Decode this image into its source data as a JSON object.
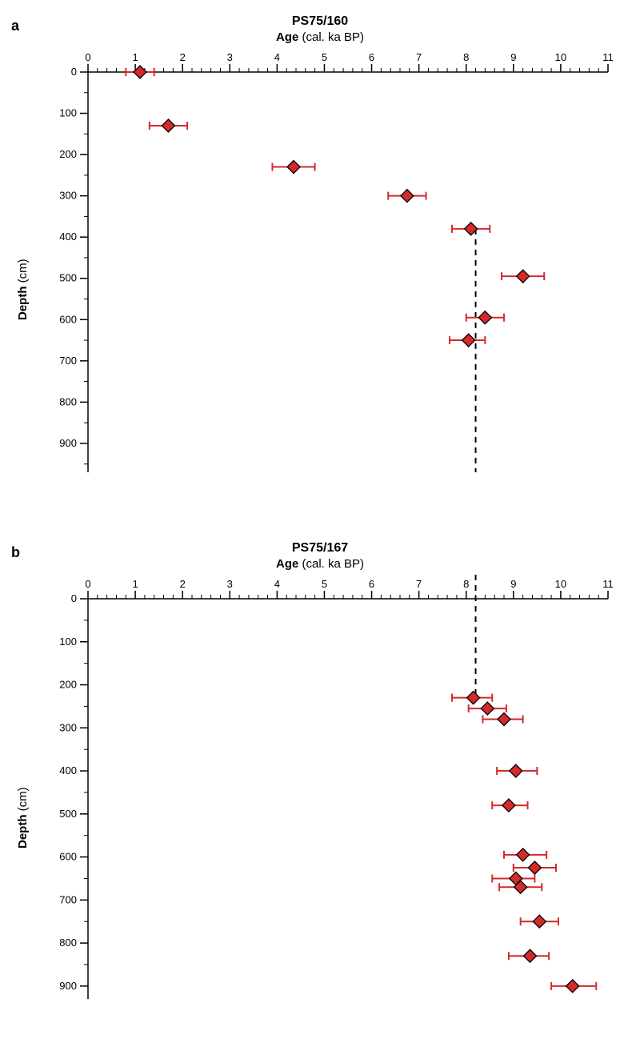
{
  "figure": {
    "background_color": "#ffffff",
    "axis_color": "#000000",
    "marker_fill": "#d42a2a",
    "marker_stroke": "#000000",
    "errorbar_color": "#d42a2a",
    "dashed_line_color": "#000000",
    "panel_label_fontsize": 18,
    "title_fontsize": 16,
    "subtitle_fontsize": 15,
    "tick_label_fontsize": 13,
    "axis_label_fontsize": 15,
    "marker_size": 8,
    "errorbar_cap": 5,
    "line_width": 1.5,
    "dashed_line_x": 8.2
  },
  "panel_a": {
    "label": "a",
    "title": "PS75/160",
    "x_axis_title_bold": "Age",
    "x_axis_title_rest": " (cal. ka BP)",
    "y_axis_title_bold": "Depth",
    "y_axis_title_rest": " (cm)",
    "xlim": [
      0,
      11
    ],
    "ylim": [
      0,
      970
    ],
    "x_major_ticks": [
      0,
      1,
      2,
      3,
      4,
      5,
      6,
      7,
      8,
      9,
      10,
      11
    ],
    "x_minor_per_major": 5,
    "y_major_ticks": [
      0,
      100,
      200,
      300,
      400,
      500,
      600,
      700,
      800,
      900
    ],
    "y_minor_per_major": 2,
    "dashed_line_y_range": [
      380,
      970
    ],
    "points": [
      {
        "depth": 0,
        "age": 1.1,
        "err_lo": 0.3,
        "err_hi": 0.3
      },
      {
        "depth": 130,
        "age": 1.7,
        "err_lo": 0.4,
        "err_hi": 0.4
      },
      {
        "depth": 230,
        "age": 4.35,
        "err_lo": 0.45,
        "err_hi": 0.45
      },
      {
        "depth": 300,
        "age": 6.75,
        "err_lo": 0.4,
        "err_hi": 0.4
      },
      {
        "depth": 380,
        "age": 8.1,
        "err_lo": 0.4,
        "err_hi": 0.4
      },
      {
        "depth": 495,
        "age": 9.2,
        "err_lo": 0.45,
        "err_hi": 0.45
      },
      {
        "depth": 595,
        "age": 8.4,
        "err_lo": 0.4,
        "err_hi": 0.4
      },
      {
        "depth": 650,
        "age": 8.05,
        "err_lo": 0.4,
        "err_hi": 0.35
      }
    ]
  },
  "panel_b": {
    "label": "b",
    "title": "PS75/167",
    "x_axis_title_bold": "Age",
    "x_axis_title_rest": " (cal. ka BP)",
    "y_axis_title_bold": "Depth",
    "y_axis_title_rest": " (cm)",
    "xlim": [
      0,
      11
    ],
    "ylim": [
      0,
      930
    ],
    "x_major_ticks": [
      0,
      1,
      2,
      3,
      4,
      5,
      6,
      7,
      8,
      9,
      10,
      11
    ],
    "x_minor_per_major": 5,
    "y_major_ticks": [
      0,
      100,
      200,
      300,
      400,
      500,
      600,
      700,
      800,
      900
    ],
    "y_minor_per_major": 2,
    "dashed_line_y_range": [
      0,
      230
    ],
    "points": [
      {
        "depth": 230,
        "age": 8.15,
        "err_lo": 0.45,
        "err_hi": 0.4
      },
      {
        "depth": 255,
        "age": 8.45,
        "err_lo": 0.4,
        "err_hi": 0.4
      },
      {
        "depth": 280,
        "age": 8.8,
        "err_lo": 0.45,
        "err_hi": 0.4
      },
      {
        "depth": 400,
        "age": 9.05,
        "err_lo": 0.4,
        "err_hi": 0.45
      },
      {
        "depth": 480,
        "age": 8.9,
        "err_lo": 0.35,
        "err_hi": 0.4
      },
      {
        "depth": 595,
        "age": 9.2,
        "err_lo": 0.4,
        "err_hi": 0.5
      },
      {
        "depth": 625,
        "age": 9.45,
        "err_lo": 0.45,
        "err_hi": 0.45
      },
      {
        "depth": 650,
        "age": 9.05,
        "err_lo": 0.5,
        "err_hi": 0.4
      },
      {
        "depth": 670,
        "age": 9.15,
        "err_lo": 0.45,
        "err_hi": 0.45
      },
      {
        "depth": 750,
        "age": 9.55,
        "err_lo": 0.4,
        "err_hi": 0.4
      },
      {
        "depth": 830,
        "age": 9.35,
        "err_lo": 0.45,
        "err_hi": 0.4
      },
      {
        "depth": 900,
        "age": 10.25,
        "err_lo": 0.45,
        "err_hi": 0.5
      }
    ]
  }
}
